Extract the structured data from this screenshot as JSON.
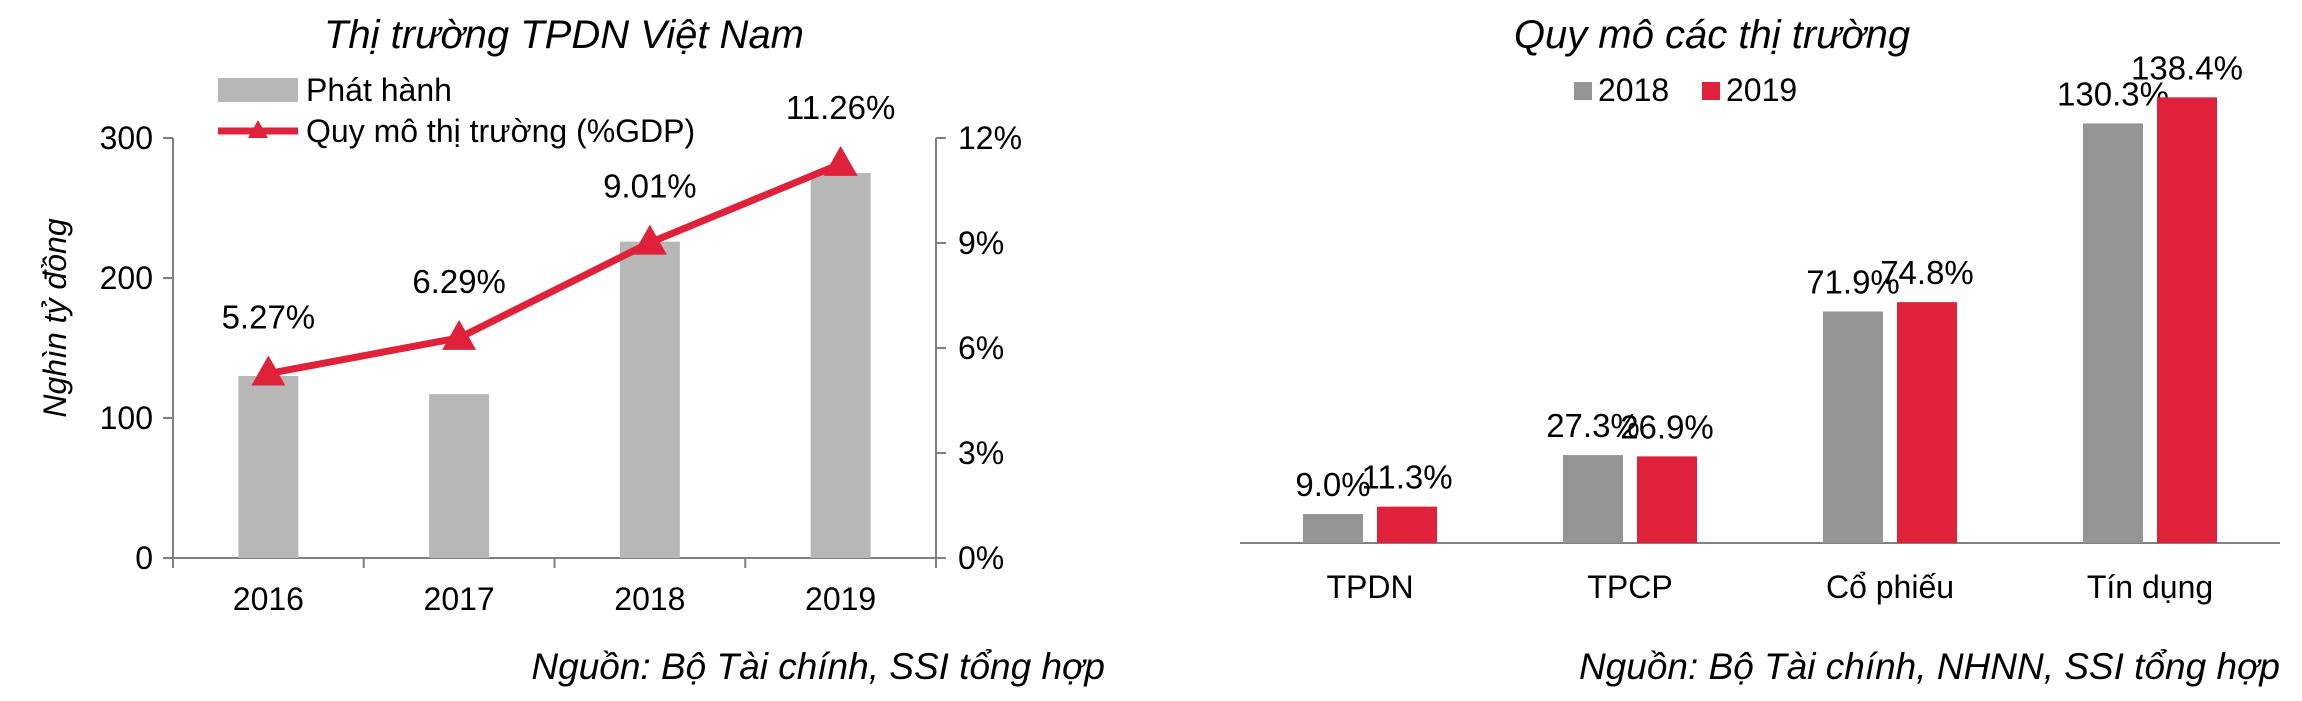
{
  "colors": {
    "issuance_bar": "#b7b7b7",
    "gdp_line": "#e0213a",
    "year_2018": "#959595",
    "year_2019": "#e0213a",
    "axis": "#808080"
  },
  "chart_data": [
    {
      "type": "bar+line",
      "title": "Thị trường TPDN Việt Nam",
      "categories": [
        "2016",
        "2017",
        "2018",
        "2019"
      ],
      "ylabel": "Nghìn tỷ đồng",
      "ylim": [
        0,
        300
      ],
      "yticks": [
        "0",
        "100",
        "200",
        "300"
      ],
      "y2lim": [
        0,
        12
      ],
      "y2ticks": [
        "0%",
        "3%",
        "6%",
        "9%",
        "12%"
      ],
      "legend_position": "top-left",
      "series": [
        {
          "name": "Phát hành",
          "type": "bar",
          "axis": "left",
          "values": [
            130,
            117,
            226,
            275
          ]
        },
        {
          "name": "Quy mô thị trường (%GDP)",
          "type": "line",
          "marker": "triangle",
          "axis": "right",
          "values": [
            5.27,
            6.29,
            9.01,
            11.26
          ],
          "labels": [
            "5.27%",
            "6.29%",
            "9.01%",
            "11.26%"
          ]
        }
      ],
      "source": "Nguồn: Bộ Tài chính, SSI tổng hợp"
    },
    {
      "type": "bar",
      "title": "Quy mô các thị trường",
      "categories": [
        "TPDN",
        "TPCP",
        "Cổ phiếu",
        "Tín dụng"
      ],
      "legend_position": "top-center",
      "series": [
        {
          "name": "2018",
          "values": [
            9.0,
            27.3,
            71.9,
            130.3
          ],
          "labels": [
            "9.0%",
            "27.3%",
            "71.9%",
            "130.3%"
          ]
        },
        {
          "name": "2019",
          "values": [
            11.3,
            26.9,
            74.8,
            138.4
          ],
          "labels": [
            "11.3%",
            "26.9%",
            "74.8%",
            "138.4%"
          ]
        }
      ],
      "source": "Nguồn: Bộ Tài chính, NHNN, SSI tổng hợp"
    }
  ]
}
